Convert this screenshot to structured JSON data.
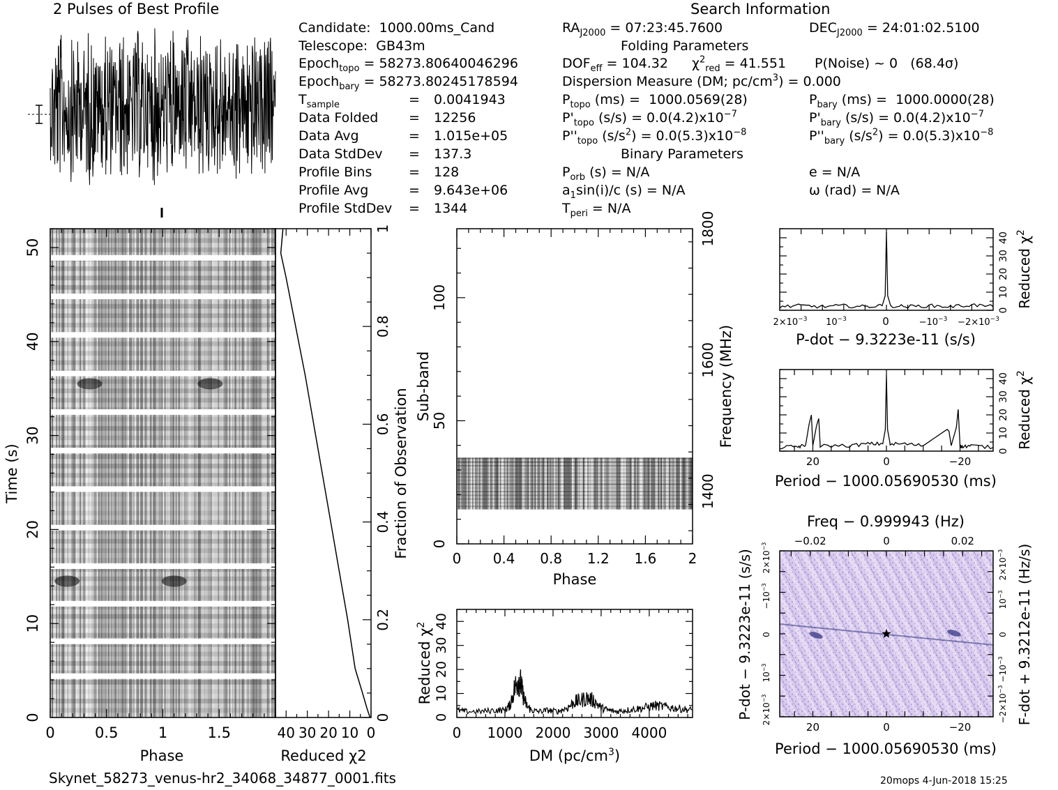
{
  "header": {
    "profile_title": "2 Pulses of Best Profile",
    "search_title": "Search Information",
    "folding_title": "Folding Parameters",
    "binary_title": "Binary Parameters"
  },
  "candidate_info": {
    "candidate": {
      "label": "Candidate:",
      "value": "1000.00ms_Cand"
    },
    "telescope": {
      "label": "Telescope:",
      "value": "GB43m"
    },
    "epoch_topo": {
      "label": "Epoch",
      "sub": "topo",
      "value": "= 58273.80640046296"
    },
    "epoch_bary": {
      "label": "Epoch",
      "sub": "bary",
      "value": "= 58273.80245178594"
    },
    "t_sample": {
      "label": "T",
      "sub": "sample",
      "eq": "=",
      "value": "0.0041943"
    },
    "data_folded": {
      "label": "Data Folded",
      "eq": "=",
      "value": "12256"
    },
    "data_avg": {
      "label": "Data Avg",
      "eq": "=",
      "value": "1.015e+05"
    },
    "data_stddev": {
      "label": "Data StdDev",
      "eq": "=",
      "value": "137.3"
    },
    "profile_bins": {
      "label": "Profile Bins",
      "eq": "=",
      "value": "128"
    },
    "profile_avg": {
      "label": "Profile Avg",
      "eq": "=",
      "value": "9.643e+06"
    },
    "profile_stddev": {
      "label": "Profile StdDev",
      "eq": "=",
      "value": "1344"
    }
  },
  "search_info": {
    "ra": {
      "label": "RA",
      "sub": "J2000",
      "value": "= 07:23:45.7600"
    },
    "dec": {
      "label": "DEC",
      "sub": "J2000",
      "value": "= 24:01:02.5100"
    },
    "dof": {
      "label": "DOF",
      "sub": "eff",
      "value": "= 104.32"
    },
    "chi2red": {
      "label": "χ",
      "sup": "2",
      "sub": "red",
      "value": "= 41.551"
    },
    "pnoise": {
      "label": "P(Noise) ~ 0",
      "value": "(68.4σ)"
    },
    "dm": {
      "label": "Dispersion Measure (DM; pc/cm",
      "sup": "3",
      "value": ") = 0.000"
    },
    "p_topo": {
      "label": "P",
      "sub": "topo",
      "unit": "(ms) =",
      "value": "1000.0569(28)"
    },
    "p_bary": {
      "label": "P",
      "sub": "bary",
      "unit": "(ms) =",
      "value": "1000.0000(28)"
    },
    "pd_topo": {
      "label": "P'",
      "sub": "topo",
      "unit": "(s/s) =",
      "value": "0.0(4.2)x10",
      "exp": "−7"
    },
    "pd_bary": {
      "label": "P'",
      "sub": "bary",
      "unit": "(s/s) =",
      "value": "0.0(4.2)x10",
      "exp": "−7"
    },
    "pdd_topo": {
      "label": "P''",
      "sub": "topo",
      "unit": "(s/s",
      "unit_sup": "2",
      "unit_end": ") =",
      "value": "0.0(5.3)x10",
      "exp": "−8"
    },
    "pdd_bary": {
      "label": "P''",
      "sub": "bary",
      "unit": "(s/s",
      "unit_sup": "2",
      "unit_end": ") =",
      "value": "0.0(5.3)x10",
      "exp": "−8"
    },
    "p_orb": {
      "label": "P",
      "sub": "orb",
      "value": "(s) = N/A"
    },
    "ecc": {
      "label": "e = N/A"
    },
    "a1sini": {
      "label": "a",
      "sub": "1",
      "value": "sin(i)/c (s) = N/A"
    },
    "omega": {
      "label": "ω (rad) = N/A"
    },
    "t_peri": {
      "label": "T",
      "sub": "peri",
      "value": "= N/A"
    }
  },
  "footer": {
    "filename": "Skynet_58273_venus-hr2_34068_34877_0001.fits",
    "stamp": "20mops   4-Jun-2018 15:25"
  },
  "colors": {
    "ink": "#000000",
    "ppdot_bg": "#d9c8ee",
    "ppdot_dark": "#3d3f8a"
  },
  "chart_data": [
    {
      "type": "line",
      "name": "profile",
      "title": "2 Pulses of Best Profile",
      "xlim": [
        0,
        2
      ],
      "pulses": 2,
      "profile_bins": 128,
      "error_bar_label": "±σ"
    },
    {
      "type": "heatmap",
      "name": "time-phase",
      "xlabel": "Phase",
      "ylabel": "Time (s)",
      "xlim": [
        0,
        2
      ],
      "ylim": [
        0,
        52
      ],
      "x_ticks": [
        "0",
        "0.5",
        "1",
        "1.5"
      ],
      "y_ticks": [
        "0",
        "10",
        "20",
        "30",
        "40",
        "50"
      ],
      "gap_times_s": [
        4.4,
        8.1,
        12.1,
        16.1,
        20.2,
        24.3,
        28.4,
        32.5,
        36.6,
        40.7,
        44.8,
        48.9
      ],
      "dark_patches": [
        {
          "phase": 0.35,
          "time": 35.5
        },
        {
          "phase": 1.42,
          "time": 35.5
        },
        {
          "phase": 0.15,
          "time": 14.5
        },
        {
          "phase": 1.1,
          "time": 14.5
        }
      ]
    },
    {
      "type": "line",
      "name": "chi2-vs-time",
      "xlabel": "Reduced χ2",
      "x_ticks": [
        "40",
        "30",
        "20",
        "10",
        "0"
      ],
      "xlim": [
        45,
        0
      ],
      "y2label": "Fraction of Observation",
      "y2_ticks": [
        "0",
        "0.2",
        "0.4",
        "0.6",
        "0.8",
        "1"
      ],
      "y": [
        0,
        0.02,
        0.05,
        0.1,
        0.2,
        0.3,
        0.4,
        0.5,
        0.6,
        0.7,
        0.8,
        0.9,
        0.95,
        1.0
      ],
      "x": [
        0.5,
        2,
        4,
        7.5,
        11,
        15,
        19,
        23,
        27,
        31,
        35.5,
        40,
        42.5,
        41.5
      ]
    },
    {
      "type": "heatmap",
      "name": "subband-phase",
      "xlabel": "Phase",
      "ylabel": "Sub-band",
      "y2label": "Frequency (MHz)",
      "xlim": [
        0,
        2
      ],
      "ylim": [
        0,
        128
      ],
      "x_ticks": [
        "0",
        "0.4",
        "0.8",
        "1.2",
        "1.6",
        "2"
      ],
      "y_ticks": [
        "0",
        "50",
        "100"
      ],
      "y2_ticks": [
        "1400",
        "1600",
        "1800"
      ],
      "band_rows": [
        14,
        35
      ]
    },
    {
      "type": "line",
      "name": "chi2-vs-dm",
      "xlabel": "DM (pc/cm3)",
      "ylabel": "Reduced χ2",
      "xlim": [
        0,
        4900
      ],
      "ylim": [
        0,
        45
      ],
      "x_ticks": [
        "0",
        "1000",
        "2000",
        "3000",
        "4000"
      ],
      "y_ticks": [
        "0",
        "10",
        "20",
        "30",
        "40"
      ],
      "x": [
        0,
        200,
        500,
        800,
        1000,
        1100,
        1200,
        1280,
        1330,
        1380,
        1450,
        1550,
        1700,
        1900,
        2100,
        2300,
        2450,
        2550,
        2700,
        2850,
        3000,
        3150,
        3300,
        3500,
        3700,
        3900,
        4100,
        4300,
        4500,
        4700,
        4900
      ],
      "y": [
        3,
        2.5,
        2.5,
        3,
        3,
        5,
        12,
        16,
        14,
        9,
        5,
        3,
        2.5,
        3,
        2.5,
        4,
        6.5,
        7,
        8,
        7,
        4,
        3,
        2.5,
        3,
        3.5,
        4,
        5,
        4.5,
        4,
        3.5,
        3
      ]
    },
    {
      "type": "line",
      "name": "chi2-vs-pdot",
      "xlabel": "P-dot − 9.3223e-11 (s/s)",
      "y2label": "Reduced χ2",
      "xlim": [
        0.0025,
        -0.0025
      ],
      "ylim": [
        0,
        45
      ],
      "y2_ticks": [
        "0",
        "10",
        "20",
        "30",
        "40"
      ],
      "x": [
        0.0025,
        0.002,
        0.0015,
        0.001,
        0.0005,
        0.0001,
        3e-05,
        0,
        -3e-05,
        -0.0001,
        -0.0005,
        -0.001,
        -0.0015,
        -0.002,
        -0.0025
      ],
      "y": [
        2,
        2.5,
        2,
        2.5,
        2,
        2.5,
        8,
        43,
        8,
        2.5,
        2,
        2.5,
        2,
        3,
        2
      ]
    },
    {
      "type": "line",
      "name": "chi2-vs-period",
      "xlabel": "Period − 1000.05690530 (ms)",
      "y2label": "Reduced χ2",
      "xlim": [
        29,
        -29
      ],
      "ylim": [
        0,
        45
      ],
      "x_ticks": [
        "20",
        "0",
        "−20"
      ],
      "y2_ticks": [
        "0",
        "10",
        "20",
        "30",
        "40"
      ],
      "x": [
        29,
        24,
        22,
        21,
        20.4,
        20,
        19,
        18.4,
        18,
        10,
        5,
        1,
        0.3,
        0,
        -0.3,
        -1,
        -5,
        -10,
        -16.5,
        -17,
        -17.6,
        -19,
        -19.5,
        -20,
        -20.5,
        -23,
        -29
      ],
      "y": [
        2,
        2.5,
        3,
        15,
        20,
        3,
        14,
        18,
        3,
        3,
        4,
        4,
        12,
        42,
        12,
        4,
        4,
        3,
        12,
        11,
        3,
        13,
        23,
        3,
        2.5,
        3,
        2
      ]
    },
    {
      "type": "heatmap",
      "name": "period-pdot",
      "xlabel": "Period − 1000.05690530 (ms)",
      "ylabel": "P-dot − 9.3223e-11 (s/s)",
      "x2label": "Freq − 0.999943 (Hz)",
      "y2label": "F-dot + 9.3212e-11 (Hz/s)",
      "xlim": [
        29,
        -29
      ],
      "x_ticks": [
        "20",
        "0",
        "−20"
      ],
      "x2_ticks": [
        "−0.02",
        "0",
        "0.02"
      ],
      "best_marker": {
        "period": 0,
        "pdot": 0
      }
    }
  ]
}
